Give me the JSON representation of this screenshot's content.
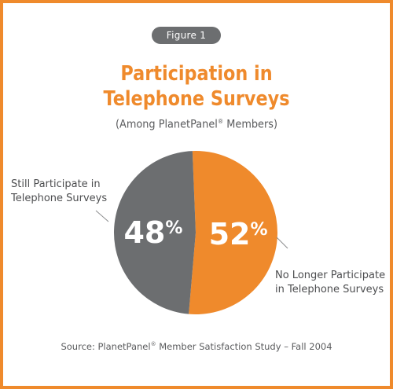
{
  "badge": "Figure 1",
  "title_lines": [
    "Participation in",
    "Telephone Surveys"
  ],
  "subtitle": {
    "before": "(Among PlanetPanel",
    "mark": "®",
    "after": " Members)"
  },
  "source": {
    "before": "Source: PlanetPanel",
    "mark": "®",
    "after": " Member Satisfaction Study – Fall 2004"
  },
  "colors": {
    "accent": "#ef8a2c",
    "gray": "#6c6e70",
    "text": "#4d4e50"
  },
  "chart_data": {
    "type": "pie",
    "title": "Participation in Telephone Surveys",
    "subtitle": "(Among PlanetPanel® Members)",
    "slices": [
      {
        "label_lines": [
          "No Longer Participate",
          "in Telephone Surveys"
        ],
        "value": 52,
        "display": "52%",
        "color": "#ef8a2c"
      },
      {
        "label_lines": [
          "Still Participate in",
          "Telephone Surveys"
        ],
        "value": 48,
        "display": "48%",
        "color": "#6c6e70"
      }
    ]
  }
}
